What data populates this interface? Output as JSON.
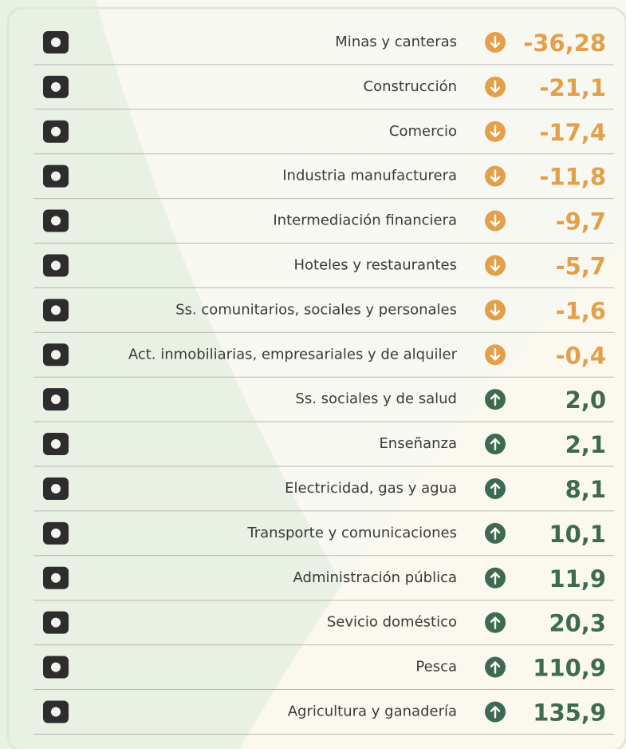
{
  "table": {
    "rows": [
      {
        "label": "Minas y canteras",
        "value": "-36,28"
      },
      {
        "label": "Construcción",
        "value": "-21,1"
      },
      {
        "label": "Comercio",
        "value": "-17,4"
      },
      {
        "label": "Industria manufacturera",
        "value": "-11,8"
      },
      {
        "label": "Intermediación financiera",
        "value": "-9,7"
      },
      {
        "label": "Hoteles y restaurantes",
        "value": "-5,7"
      },
      {
        "label": "Ss. comunitarios, sociales y personales",
        "value": "-1,6"
      },
      {
        "label": "Act. inmobiliarias, empresariales y de alquiler",
        "value": "-0,4"
      },
      {
        "label": "Ss. sociales y de salud",
        "value": "2,0"
      },
      {
        "label": "Enseñanza",
        "value": "2,1"
      },
      {
        "label": "Electricidad, gas y agua",
        "value": "8,1"
      },
      {
        "label": "Transporte y comunicaciones",
        "value": "10,1"
      },
      {
        "label": "Administración pública",
        "value": "11,9"
      },
      {
        "label": "Sevicio doméstico",
        "value": "20,3"
      },
      {
        "label": "Pesca",
        "value": "110,9"
      },
      {
        "label": "Agricultura y ganadería",
        "value": "135,9"
      }
    ]
  }
}
